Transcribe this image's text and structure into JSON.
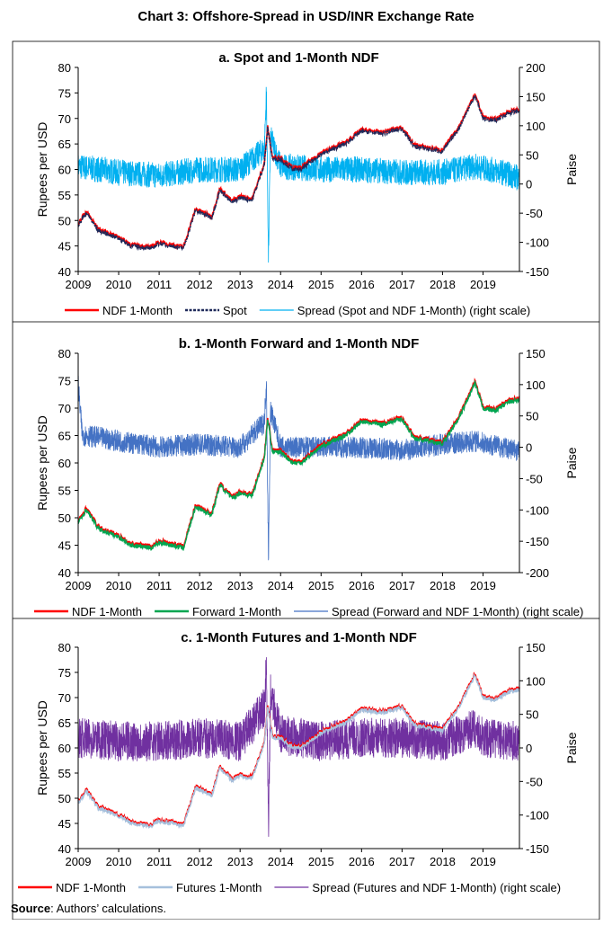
{
  "title": "Chart 3: Offshore-Spread in USD/INR Exchange Rate",
  "source_label": "Source",
  "source_text": ": Authors’ calculations.",
  "chart_data": [
    {
      "type": "line",
      "title": "a. Spot and 1-Month NDF",
      "ylabel": "Rupees per USD",
      "y2label": "Paise",
      "xlim": [
        2009,
        2019.9
      ],
      "ylim": [
        40,
        80
      ],
      "y2lim": [
        -150,
        200
      ],
      "xticks": [
        "2009",
        "2010",
        "2011",
        "2012",
        "2013",
        "2014",
        "2015",
        "2016",
        "2017",
        "2018",
        "2019"
      ],
      "yticks": [
        40,
        45,
        50,
        55,
        60,
        65,
        70,
        75,
        80
      ],
      "y2ticks": [
        -150,
        -100,
        -50,
        0,
        50,
        100,
        150,
        200
      ],
      "legend": "bottom",
      "series": [
        {
          "name": "NDF 1-Month",
          "color": "#ff0000",
          "axis": "left",
          "ref": "rate"
        },
        {
          "name": "Spot",
          "color": "#1f2a5a",
          "axis": "left",
          "dash": true,
          "ref": "rate"
        },
        {
          "name": "Spread (Spot and NDF 1-Month) (right scale)",
          "color": "#00b0f0",
          "axis": "right",
          "ref": "spread_a"
        }
      ]
    },
    {
      "type": "line",
      "title": "b. 1-Month Forward and 1-Month NDF",
      "ylabel": "Rupees per USD",
      "y2label": "Paise",
      "xlim": [
        2009,
        2019.9
      ],
      "ylim": [
        40,
        80
      ],
      "y2lim": [
        -200,
        150
      ],
      "xticks": [
        "2009",
        "2010",
        "2011",
        "2012",
        "2013",
        "2014",
        "2015",
        "2016",
        "2017",
        "2018",
        "2019"
      ],
      "yticks": [
        40,
        45,
        50,
        55,
        60,
        65,
        70,
        75,
        80
      ],
      "y2ticks": [
        -200,
        -150,
        -100,
        -50,
        0,
        50,
        100,
        150
      ],
      "legend": "bottom",
      "series": [
        {
          "name": "NDF 1-Month",
          "color": "#ff0000",
          "axis": "left",
          "ref": "rate"
        },
        {
          "name": "Forward 1-Month",
          "color": "#00a550",
          "axis": "left",
          "ref": "rate"
        },
        {
          "name": "Spread (Forward and NDF 1-Month) (right scale)",
          "color": "#4472c4",
          "axis": "right",
          "ref": "spread_b"
        }
      ]
    },
    {
      "type": "line",
      "title": "c. 1-Month Futures and 1-Month NDF",
      "ylabel": "Rupees per USD",
      "y2label": "Paise",
      "xlim": [
        2009,
        2019.9
      ],
      "ylim": [
        40,
        80
      ],
      "y2lim": [
        -150,
        150
      ],
      "xticks": [
        "2009",
        "2010",
        "2011",
        "2012",
        "2013",
        "2014",
        "2015",
        "2016",
        "2017",
        "2018",
        "2019"
      ],
      "yticks": [
        40,
        45,
        50,
        55,
        60,
        65,
        70,
        75,
        80
      ],
      "y2ticks": [
        -150,
        -100,
        -50,
        0,
        50,
        100,
        150
      ],
      "legend": "bottom",
      "series": [
        {
          "name": "NDF 1-Month",
          "color": "#ff0000",
          "axis": "left",
          "ref": "rate"
        },
        {
          "name": "Futures 1-Month",
          "color": "#a6c0dc",
          "axis": "left",
          "ref": "rate"
        },
        {
          "name": "Spread (Futures and NDF 1-Month) (right scale)",
          "color": "#7030a0",
          "axis": "right",
          "ref": "spread_c"
        }
      ]
    }
  ],
  "series_values": {
    "rate": {
      "x": [
        2009,
        2009.2,
        2009.5,
        2010,
        2010.3,
        2010.8,
        2011,
        2011.6,
        2011.9,
        2012.3,
        2012.5,
        2012.8,
        2013,
        2013.3,
        2013.6,
        2013.68,
        2013.8,
        2014,
        2014.3,
        2014.5,
        2015,
        2015.6,
        2016,
        2016.5,
        2017,
        2017.3,
        2018,
        2018.4,
        2018.8,
        2019,
        2019.3,
        2019.6,
        2019.9
      ],
      "y": [
        49,
        51.5,
        48,
        46.5,
        45,
        44.5,
        45.5,
        44.5,
        52,
        50.5,
        56,
        53.5,
        54.5,
        54,
        61,
        68,
        62,
        62,
        60,
        60,
        63,
        65,
        67.5,
        67,
        68,
        64.5,
        63.5,
        68,
        74.5,
        70,
        69.5,
        71,
        71.5
      ]
    },
    "spread_a": {
      "x": [
        2009,
        2009.5,
        2010,
        2011,
        2012,
        2013,
        2013.6,
        2013.65,
        2013.7,
        2013.75,
        2014,
        2015,
        2016,
        2017,
        2018,
        2018.8,
        2019.5,
        2019.9
      ],
      "y": [
        30,
        25,
        20,
        15,
        25,
        25,
        60,
        160,
        -125,
        80,
        30,
        25,
        25,
        20,
        20,
        30,
        20,
        10
      ]
    },
    "spread_b": {
      "x": [
        2009,
        2009.1,
        2010,
        2011,
        2012,
        2013,
        2013.6,
        2013.65,
        2013.7,
        2013.75,
        2014,
        2015,
        2016,
        2017,
        2018,
        2018.8,
        2019.5,
        2019.9
      ],
      "y": [
        100,
        20,
        10,
        0,
        5,
        0,
        40,
        110,
        -180,
        60,
        0,
        0,
        0,
        -5,
        5,
        10,
        0,
        -5
      ]
    },
    "spread_c": {
      "x": [
        2009,
        2010,
        2011,
        2012,
        2013,
        2013.6,
        2013.65,
        2013.7,
        2013.75,
        2014,
        2015,
        2016,
        2017,
        2018,
        2018.8,
        2019,
        2019.9
      ],
      "y": [
        15,
        10,
        10,
        15,
        10,
        60,
        125,
        -130,
        80,
        20,
        10,
        15,
        15,
        10,
        30,
        15,
        10
      ]
    }
  }
}
